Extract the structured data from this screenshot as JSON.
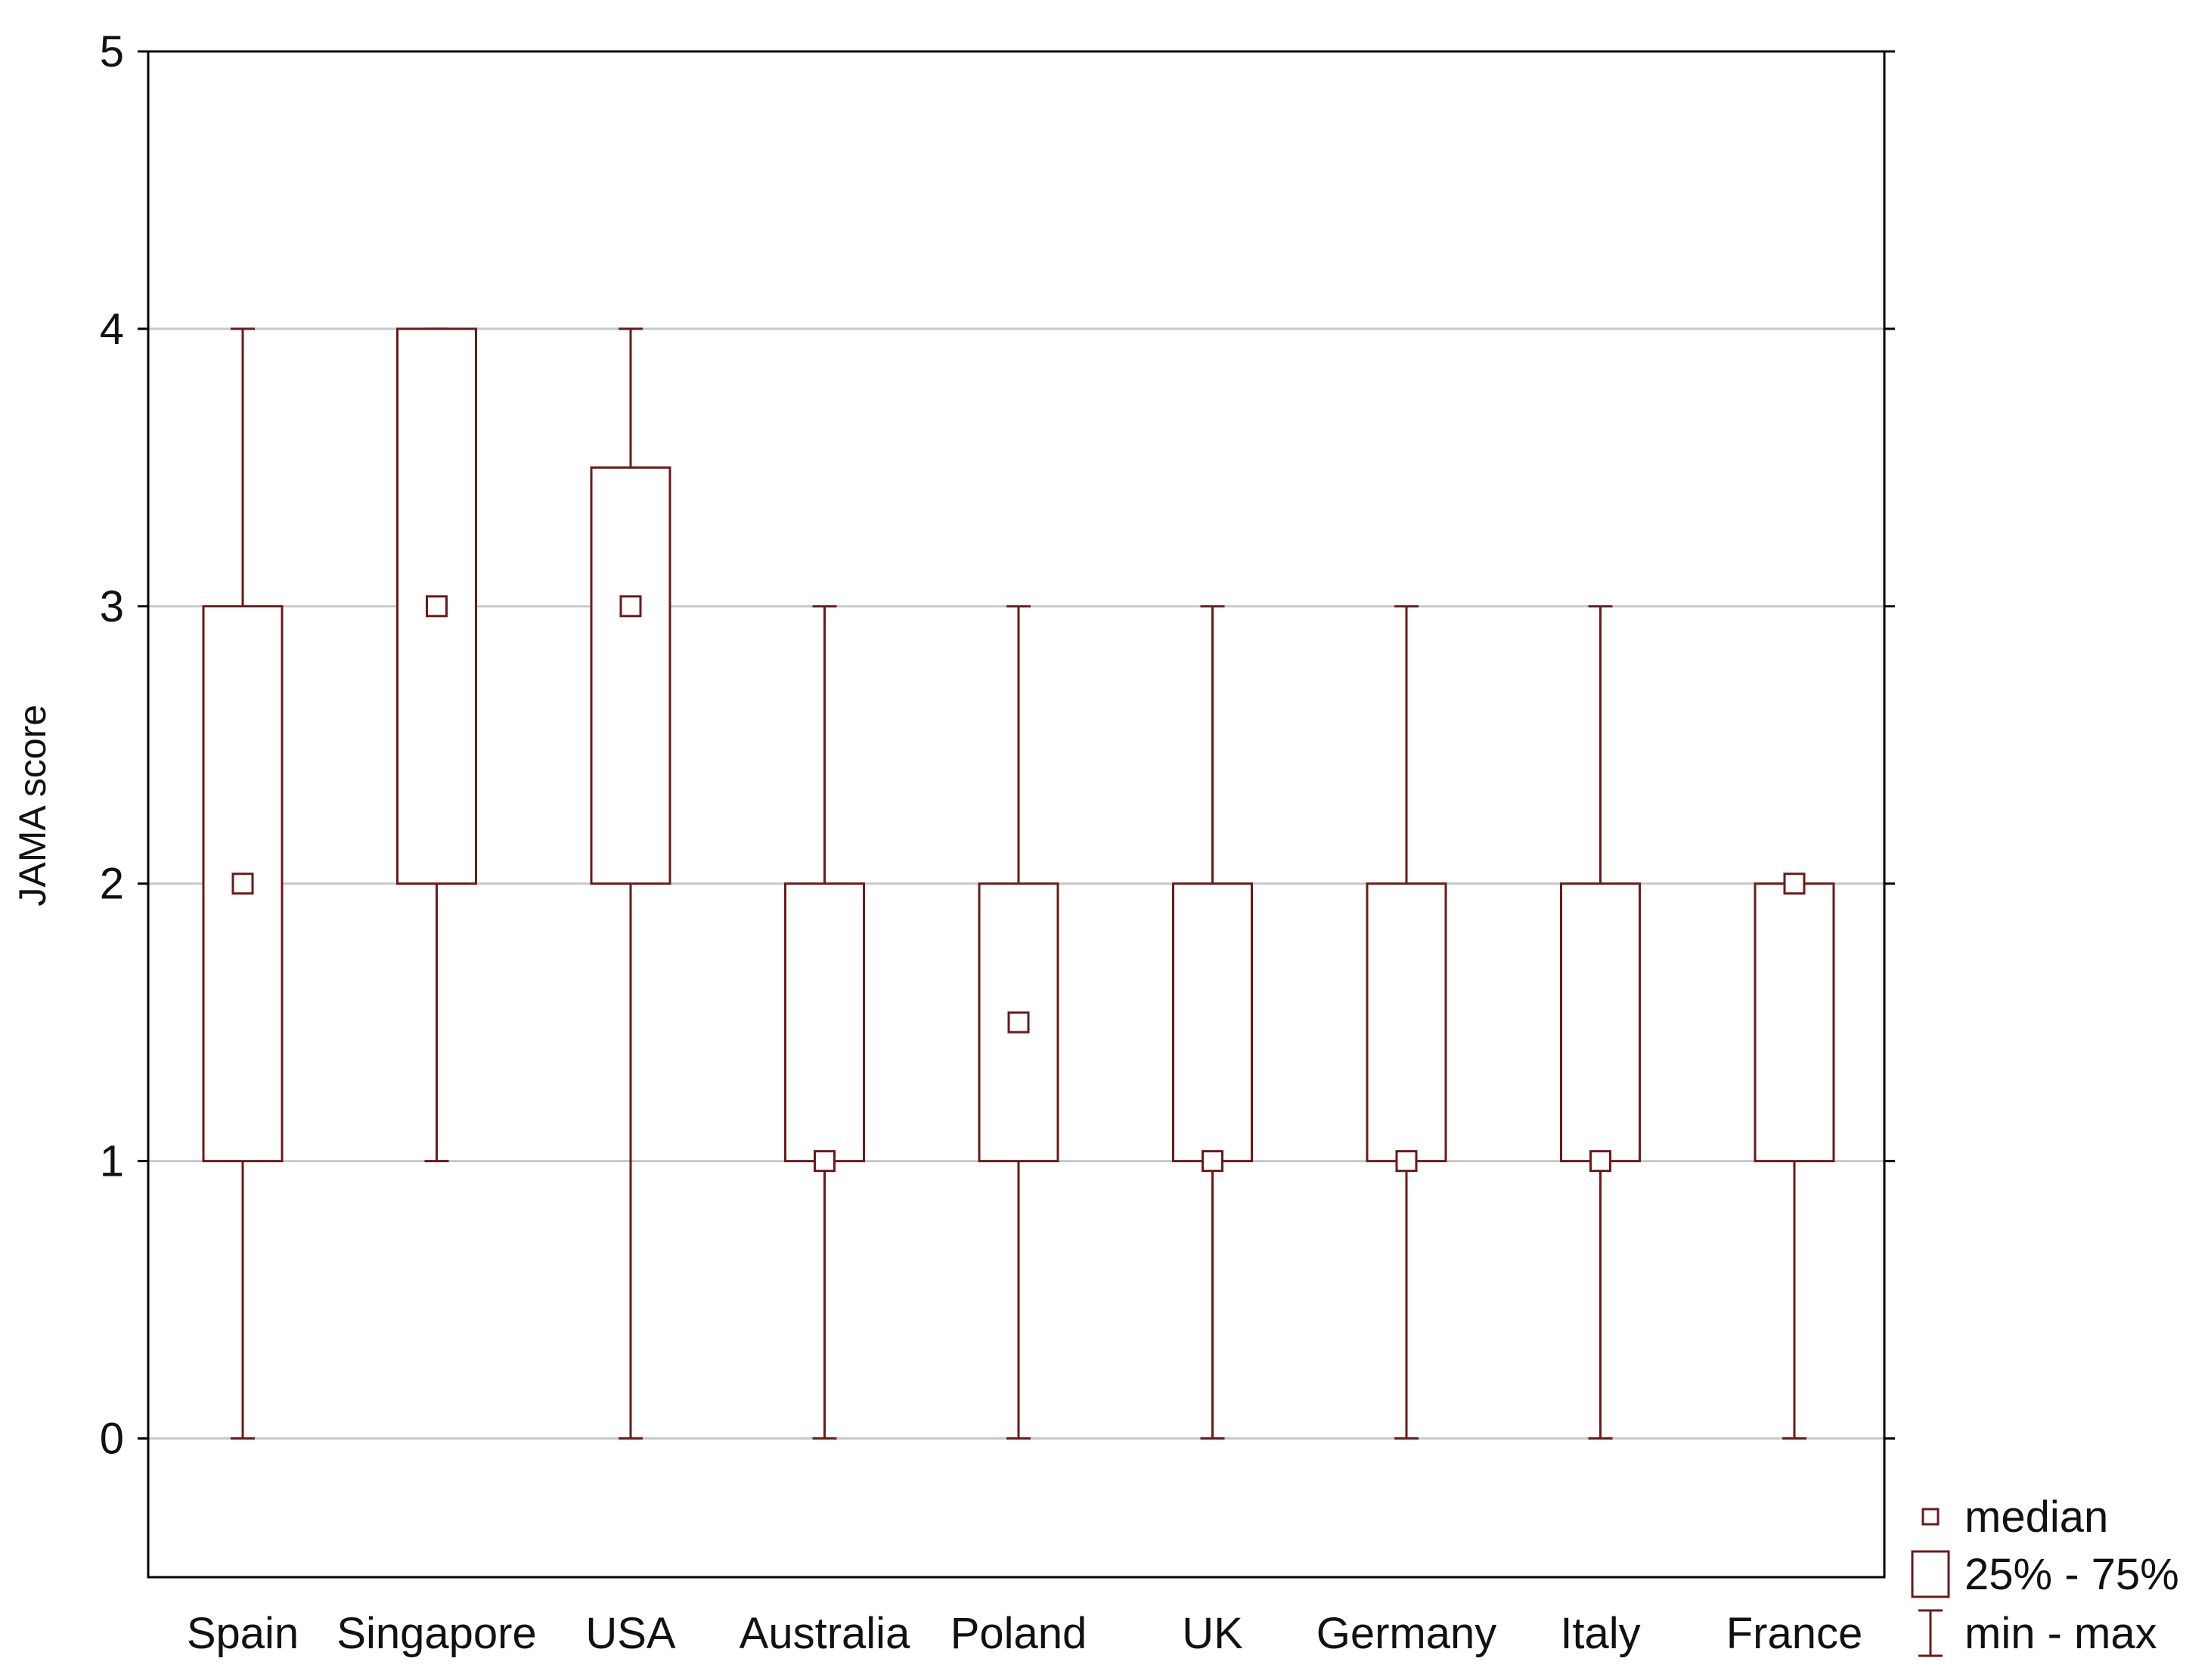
{
  "chart_data": {
    "type": "box",
    "ylabel": "JAMA score",
    "xlabel": "",
    "ylim": [
      -0.5,
      5
    ],
    "yticks": [
      0,
      1,
      2,
      3,
      4,
      5
    ],
    "grid": true,
    "categories": [
      "Spain",
      "Singapore",
      "USA",
      "Australia",
      "Poland",
      "UK",
      "Germany",
      "Italy",
      "France"
    ],
    "boxes": [
      {
        "category": "Spain",
        "min": 0,
        "q1": 1,
        "median": 2,
        "q3": 3,
        "max": 4
      },
      {
        "category": "Singapore",
        "min": 1,
        "q1": 2,
        "median": 3,
        "q3": 4,
        "max": 4
      },
      {
        "category": "USA",
        "min": 0,
        "q1": 2,
        "median": 3,
        "q3": 3.5,
        "max": 4
      },
      {
        "category": "Australia",
        "min": 0,
        "q1": 1,
        "median": 1,
        "q3": 2,
        "max": 3
      },
      {
        "category": "Poland",
        "min": 0,
        "q1": 1,
        "median": 1.5,
        "q3": 2,
        "max": 3
      },
      {
        "category": "UK",
        "min": 0,
        "q1": 1,
        "median": 1,
        "q3": 2,
        "max": 3
      },
      {
        "category": "Germany",
        "min": 0,
        "q1": 1,
        "median": 1,
        "q3": 2,
        "max": 3
      },
      {
        "category": "Italy",
        "min": 0,
        "q1": 1,
        "median": 1,
        "q3": 2,
        "max": 3
      },
      {
        "category": "France",
        "min": 0,
        "q1": 1,
        "median": 2,
        "q3": 2,
        "max": 2
      }
    ],
    "legend": {
      "position": "bottom-right",
      "items": [
        {
          "symbol": "median-marker",
          "label": "median"
        },
        {
          "symbol": "box",
          "label": "25% - 75%"
        },
        {
          "symbol": "whisker",
          "label": "min - max"
        }
      ]
    },
    "colors": {
      "box_stroke": "#6b1a1a",
      "grid": "#c8c8c8",
      "axis": "#000000"
    }
  }
}
